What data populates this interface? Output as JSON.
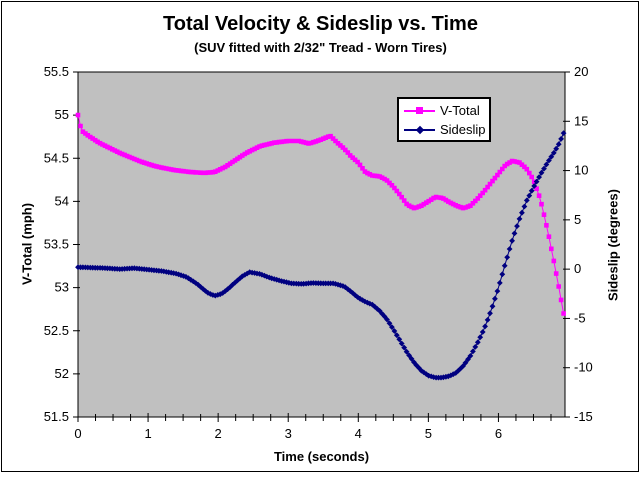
{
  "colors": {
    "chart_bg": "#FFFFFF",
    "plot_bg": "#C0C0C0",
    "axis": "#000000",
    "v_total": "#FF00FF",
    "sideslip": "#000080"
  },
  "chart_data": {
    "type": "scatter-line",
    "title": "Total Velocity & Sideslip vs. Time",
    "subtitle": "(SUV fitted with 2/32\" Tread - Worn Tires)",
    "xlabel": "Time (seconds)",
    "ylabel_left": "V-Total (mph)",
    "ylabel_right": "Sideslip (degrees)",
    "grid": false,
    "legend_position": "top-right-inside",
    "marker_step_s": 0.035,
    "x_axis": {
      "min": 0,
      "max": 6.95,
      "major_ticks": [
        0,
        1,
        2,
        3,
        4,
        5,
        6
      ],
      "minor_step": 0.25
    },
    "y_left": {
      "min": 51.5,
      "max": 55.5,
      "ticks": [
        55.5,
        55,
        54.5,
        54,
        53.5,
        53,
        52.5,
        52,
        51.5
      ]
    },
    "y_right": {
      "min": -15,
      "max": 20,
      "ticks": [
        20,
        15,
        10,
        5,
        0,
        -5,
        -10,
        -15
      ]
    },
    "series": [
      {
        "name": "V-Total",
        "axis": "left",
        "color": "#FF00FF",
        "marker": "square",
        "points": [
          [
            0,
            55
          ],
          [
            0.05,
            54.82
          ],
          [
            0.15,
            54.76
          ],
          [
            0.3,
            54.68
          ],
          [
            0.45,
            54.62
          ],
          [
            0.6,
            54.56
          ],
          [
            0.75,
            54.51
          ],
          [
            0.9,
            54.46
          ],
          [
            1.05,
            54.42
          ],
          [
            1.2,
            54.39
          ],
          [
            1.4,
            54.36
          ],
          [
            1.6,
            54.34
          ],
          [
            1.8,
            54.33
          ],
          [
            1.95,
            54.34
          ],
          [
            2.1,
            54.4
          ],
          [
            2.25,
            54.48
          ],
          [
            2.4,
            54.56
          ],
          [
            2.6,
            54.64
          ],
          [
            2.8,
            54.68
          ],
          [
            3,
            54.7
          ],
          [
            3.15,
            54.7
          ],
          [
            3.3,
            54.67
          ],
          [
            3.45,
            54.71
          ],
          [
            3.6,
            54.76
          ],
          [
            3.7,
            54.68
          ],
          [
            3.8,
            54.61
          ],
          [
            3.9,
            54.52
          ],
          [
            4,
            54.45
          ],
          [
            4.1,
            54.34
          ],
          [
            4.2,
            54.3
          ],
          [
            4.3,
            54.29
          ],
          [
            4.4,
            54.25
          ],
          [
            4.5,
            54.17
          ],
          [
            4.6,
            54.07
          ],
          [
            4.7,
            53.96
          ],
          [
            4.8,
            53.92
          ],
          [
            4.9,
            53.95
          ],
          [
            5,
            54
          ],
          [
            5.1,
            54.05
          ],
          [
            5.2,
            54.04
          ],
          [
            5.3,
            53.99
          ],
          [
            5.4,
            53.95
          ],
          [
            5.5,
            53.92
          ],
          [
            5.6,
            53.95
          ],
          [
            5.7,
            54.03
          ],
          [
            5.8,
            54.12
          ],
          [
            5.9,
            54.22
          ],
          [
            6,
            54.32
          ],
          [
            6.1,
            54.42
          ],
          [
            6.2,
            54.47
          ],
          [
            6.3,
            54.45
          ],
          [
            6.4,
            54.38
          ],
          [
            6.5,
            54.25
          ],
          [
            6.6,
            54.02
          ],
          [
            6.7,
            53.67
          ],
          [
            6.8,
            53.27
          ],
          [
            6.87,
            52.97
          ],
          [
            6.93,
            52.7
          ]
        ]
      },
      {
        "name": "Sideslip",
        "axis": "right",
        "color": "#000080",
        "marker": "diamond",
        "points": [
          [
            0,
            0.2
          ],
          [
            0.2,
            0.15
          ],
          [
            0.4,
            0.1
          ],
          [
            0.6,
            0
          ],
          [
            0.8,
            0.1
          ],
          [
            1,
            -0.05
          ],
          [
            1.2,
            -0.2
          ],
          [
            1.4,
            -0.45
          ],
          [
            1.55,
            -0.8
          ],
          [
            1.7,
            -1.5
          ],
          [
            1.85,
            -2.4
          ],
          [
            1.95,
            -2.7
          ],
          [
            2.05,
            -2.5
          ],
          [
            2.15,
            -1.95
          ],
          [
            2.25,
            -1.3
          ],
          [
            2.35,
            -0.7
          ],
          [
            2.45,
            -0.3
          ],
          [
            2.6,
            -0.5
          ],
          [
            2.75,
            -0.9
          ],
          [
            2.9,
            -1.2
          ],
          [
            3.05,
            -1.45
          ],
          [
            3.2,
            -1.5
          ],
          [
            3.35,
            -1.4
          ],
          [
            3.5,
            -1.45
          ],
          [
            3.65,
            -1.45
          ],
          [
            3.8,
            -1.75
          ],
          [
            3.9,
            -2.3
          ],
          [
            4,
            -2.9
          ],
          [
            4.1,
            -3.3
          ],
          [
            4.2,
            -3.6
          ],
          [
            4.3,
            -4.2
          ],
          [
            4.4,
            -5
          ],
          [
            4.5,
            -6.1
          ],
          [
            4.6,
            -7.3
          ],
          [
            4.7,
            -8.5
          ],
          [
            4.8,
            -9.5
          ],
          [
            4.9,
            -10.3
          ],
          [
            5,
            -10.8
          ],
          [
            5.1,
            -11
          ],
          [
            5.2,
            -11
          ],
          [
            5.3,
            -10.85
          ],
          [
            5.4,
            -10.5
          ],
          [
            5.5,
            -9.8
          ],
          [
            5.6,
            -8.8
          ],
          [
            5.7,
            -7.5
          ],
          [
            5.8,
            -6
          ],
          [
            5.9,
            -4.1
          ],
          [
            6,
            -1.9
          ],
          [
            6.1,
            0.6
          ],
          [
            6.2,
            3
          ],
          [
            6.3,
            5.1
          ],
          [
            6.4,
            6.9
          ],
          [
            6.5,
            8.3
          ],
          [
            6.6,
            9.6
          ],
          [
            6.7,
            10.8
          ],
          [
            6.8,
            11.9
          ],
          [
            6.87,
            12.8
          ],
          [
            6.93,
            13.8
          ]
        ]
      }
    ]
  }
}
